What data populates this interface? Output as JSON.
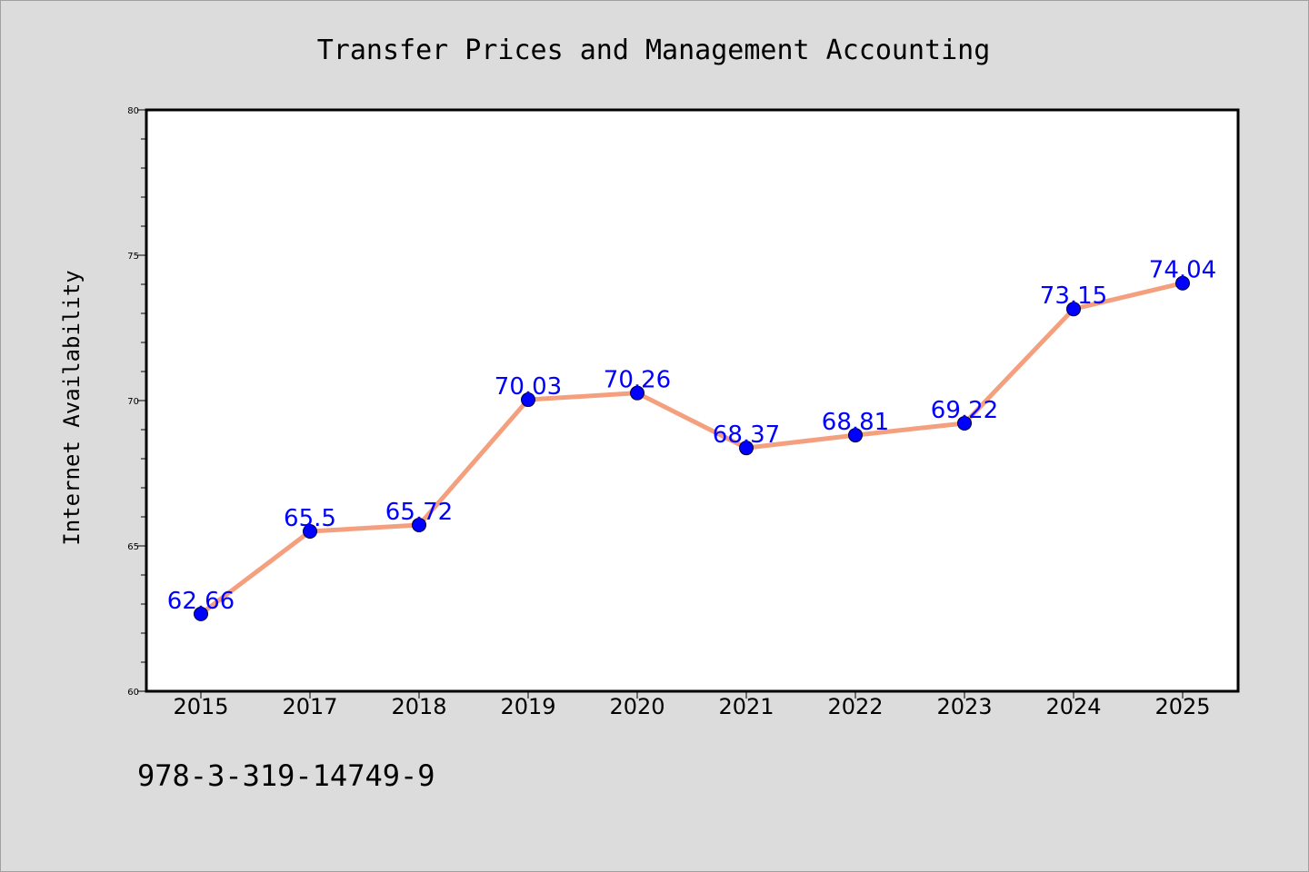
{
  "isbn": "978-3-319-14749-9",
  "colors": {
    "background": "#dcdcdc",
    "plot_background": "#ffffff",
    "line": "#f4a07e",
    "marker": "#0000ff",
    "data_label": "#0000ff"
  },
  "chart_data": {
    "type": "line",
    "title": "Transfer Prices and Management Accounting",
    "xlabel": "",
    "ylabel": "Internet Availability",
    "categories": [
      "2015",
      "2017",
      "2018",
      "2019",
      "2020",
      "2021",
      "2022",
      "2023",
      "2024",
      "2025"
    ],
    "values": [
      62.66,
      65.5,
      65.72,
      70.03,
      70.26,
      68.37,
      68.81,
      69.22,
      73.15,
      74.04
    ],
    "data_labels": [
      "62.66",
      "65.5",
      "65.72",
      "70.03",
      "70.26",
      "68.37",
      "68.81",
      "69.22",
      "73.15",
      "74.04"
    ],
    "ylim": [
      60,
      80
    ],
    "yticks": [
      "60",
      "65",
      "70",
      "75",
      "80"
    ],
    "grid": false,
    "legend": "none"
  }
}
